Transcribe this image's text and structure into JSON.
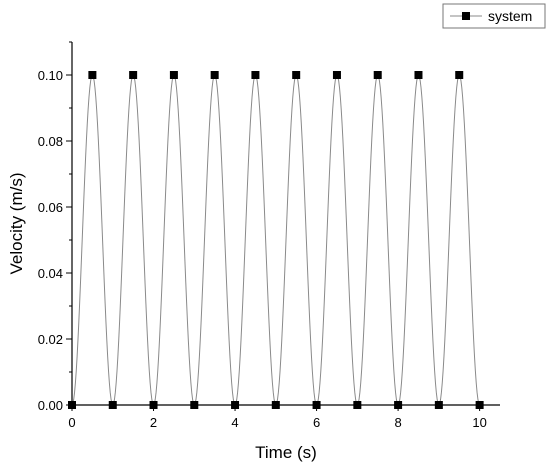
{
  "chart_data": {
    "type": "line",
    "title": "",
    "xlabel": "Time (s)",
    "ylabel": "Velocity (m/s)",
    "xlim": [
      0,
      10.5
    ],
    "ylim": [
      0,
      0.11
    ],
    "x_ticks": [
      0,
      2,
      4,
      6,
      8,
      10
    ],
    "y_ticks": [
      0.0,
      0.02,
      0.04,
      0.06,
      0.08,
      0.1
    ],
    "y_tick_labels": [
      "0.00",
      "0.02",
      "0.04",
      "0.06",
      "0.08",
      "0.10"
    ],
    "grid": false,
    "legend_position": "top-right",
    "series": [
      {
        "name": "system",
        "marker": "square",
        "color": "#000000",
        "line_color": "#8a8a8a",
        "x": [
          0,
          0.5,
          1,
          1.5,
          2,
          2.5,
          3,
          3.5,
          4,
          4.5,
          5,
          5.5,
          6,
          6.5,
          7,
          7.5,
          8,
          8.5,
          9,
          9.5,
          10
        ],
        "y": [
          0,
          0.1,
          0,
          0.1,
          0,
          0.1,
          0,
          0.1,
          0,
          0.1,
          0,
          0.1,
          0,
          0.1,
          0,
          0.1,
          0,
          0.1,
          0,
          0.1,
          0
        ]
      }
    ]
  }
}
